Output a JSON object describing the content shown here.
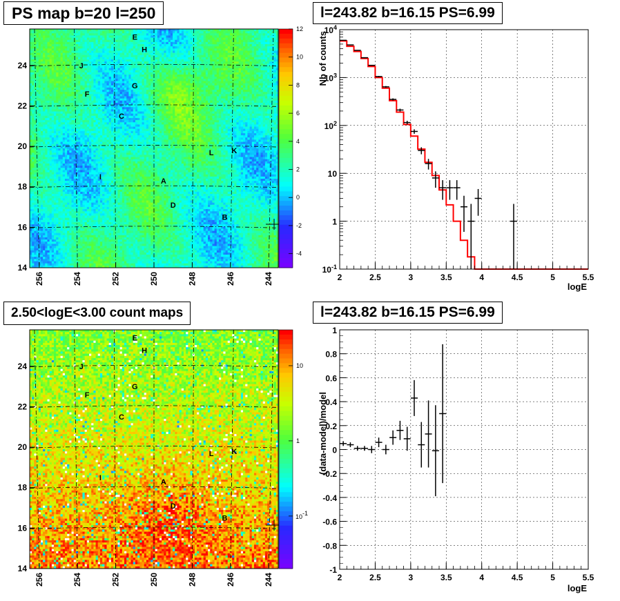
{
  "chart_data": [
    {
      "type": "heatmap",
      "title": "PS map b=20 l=250",
      "x_ticks": [
        "256",
        "254",
        "252",
        "250",
        "248",
        "246",
        "244"
      ],
      "y_ticks": [
        "14",
        "16",
        "18",
        "20",
        "22",
        "24"
      ],
      "xlim": [
        256.5,
        243.5
      ],
      "ylim": [
        14,
        25.8
      ],
      "colorbar_ticks": [
        "12",
        "10",
        "8",
        "6",
        "4",
        "2",
        "0",
        "-2",
        "-4"
      ],
      "colorbar_range": [
        -5,
        12
      ],
      "colorbar_scale": "linear",
      "colors": {
        "low": "#7f00ff",
        "mid": "#00ffff",
        "high": "#ff0000"
      },
      "grid": "dashed lat/lon lines",
      "sources": [
        {
          "label": "E",
          "l": 251.0,
          "b": 25.4
        },
        {
          "label": "H",
          "l": 250.5,
          "b": 24.8
        },
        {
          "label": "J",
          "l": 253.8,
          "b": 24.0
        },
        {
          "label": "G",
          "l": 251.0,
          "b": 23.0
        },
        {
          "label": "F",
          "l": 253.5,
          "b": 22.6
        },
        {
          "label": "C",
          "l": 251.7,
          "b": 21.5
        },
        {
          "label": "L",
          "l": 247.0,
          "b": 19.7
        },
        {
          "label": "K",
          "l": 245.8,
          "b": 19.8
        },
        {
          "label": "I",
          "l": 252.8,
          "b": 18.5
        },
        {
          "label": "A",
          "l": 249.5,
          "b": 18.3
        },
        {
          "label": "D",
          "l": 249.0,
          "b": 17.1
        },
        {
          "label": "B",
          "l": 246.3,
          "b": 16.5
        }
      ]
    },
    {
      "type": "line",
      "title": "l=243.82 b=16.15 PS=6.99",
      "xlabel": "logE",
      "ylabel": "Nb of counts",
      "yscale": "log",
      "xlim": [
        2,
        5.5
      ],
      "ylim": [
        0.1,
        10000
      ],
      "x_ticks": [
        "2",
        "2.5",
        "3",
        "3.5",
        "4",
        "4.5",
        "5",
        "5.5"
      ],
      "y_ticks": [
        "10^-1",
        "1",
        "10",
        "10^2",
        "10^3",
        "10^4"
      ],
      "grid": true,
      "series": [
        {
          "role": "model",
          "color": "#ff0000",
          "bin_edges": [
            2.0,
            2.1,
            2.2,
            2.3,
            2.4,
            2.5,
            2.6,
            2.7,
            2.8,
            2.9,
            3.0,
            3.1,
            3.2,
            3.3,
            3.4,
            3.5,
            3.6,
            3.7,
            3.8,
            3.9,
            4.0,
            5.5
          ],
          "values": [
            5800,
            4500,
            3500,
            2500,
            1700,
            1000,
            600,
            330,
            190,
            105,
            60,
            32,
            17,
            9,
            4.5,
            2.2,
            1.0,
            0.4,
            0.18,
            0.1,
            0.1
          ]
        },
        {
          "role": "data",
          "color": "#000000",
          "x": [
            2.05,
            2.15,
            2.25,
            2.35,
            2.45,
            2.55,
            2.65,
            2.75,
            2.85,
            2.95,
            3.05,
            3.15,
            3.25,
            3.35,
            3.45,
            3.55,
            3.65,
            3.75,
            3.85,
            3.95,
            4.45
          ],
          "y": [
            6000,
            4800,
            3700,
            2600,
            1800,
            1050,
            640,
            350,
            210,
            115,
            75,
            30,
            16,
            8,
            5,
            5,
            5,
            2,
            1,
            3,
            1
          ],
          "y_err_low": [
            80,
            70,
            60,
            50,
            40,
            32,
            25,
            18,
            14,
            10,
            8,
            5,
            4,
            3,
            2.2,
            2.2,
            2.2,
            1.4,
            0.9,
            1.7,
            0.9
          ],
          "y_err_high": [
            80,
            70,
            60,
            50,
            40,
            32,
            25,
            18,
            14,
            10,
            8,
            5,
            4,
            3,
            2.2,
            2.2,
            2.2,
            1.4,
            1.3,
            1.7,
            1.3
          ]
        }
      ]
    },
    {
      "type": "heatmap",
      "title": "2.50<logE<3.00 count maps",
      "x_ticks": [
        "256",
        "254",
        "252",
        "250",
        "248",
        "246",
        "244"
      ],
      "y_ticks": [
        "14",
        "16",
        "18",
        "20",
        "22",
        "24"
      ],
      "xlim": [
        256.5,
        243.5
      ],
      "ylim": [
        14,
        25.8
      ],
      "colorbar_ticks": [
        "10",
        "1",
        "10^-1"
      ],
      "colorbar_range": [
        0.02,
        30
      ],
      "colorbar_scale": "log",
      "grid": "dashed lat/lon lines",
      "sources": [
        {
          "label": "E",
          "l": 251.0,
          "b": 25.4
        },
        {
          "label": "H",
          "l": 250.5,
          "b": 24.8
        },
        {
          "label": "J",
          "l": 253.8,
          "b": 24.0
        },
        {
          "label": "G",
          "l": 251.0,
          "b": 23.0
        },
        {
          "label": "F",
          "l": 253.5,
          "b": 22.6
        },
        {
          "label": "C",
          "l": 251.7,
          "b": 21.5
        },
        {
          "label": "L",
          "l": 247.0,
          "b": 19.7
        },
        {
          "label": "K",
          "l": 245.8,
          "b": 19.8
        },
        {
          "label": "I",
          "l": 252.8,
          "b": 18.5
        },
        {
          "label": "A",
          "l": 249.5,
          "b": 18.3
        },
        {
          "label": "D",
          "l": 249.0,
          "b": 17.1
        },
        {
          "label": "B",
          "l": 246.3,
          "b": 16.5
        }
      ]
    },
    {
      "type": "scatter",
      "title": "l=243.82 b=16.15 PS=6.99",
      "xlabel": "logE",
      "ylabel": "(data-model)/model",
      "xlim": [
        2,
        5.5
      ],
      "ylim": [
        -1,
        1
      ],
      "x_ticks": [
        "2",
        "2.5",
        "3",
        "3.5",
        "4",
        "4.5",
        "5",
        "5.5"
      ],
      "y_ticks": [
        "-1",
        "-0.8",
        "-0.6",
        "-0.4",
        "-0.2",
        "0",
        "0.2",
        "0.4",
        "0.6",
        "0.8",
        "1"
      ],
      "grid": true,
      "series": [
        {
          "color": "#000000",
          "x": [
            2.05,
            2.15,
            2.25,
            2.35,
            2.45,
            2.55,
            2.65,
            2.75,
            2.85,
            2.95,
            3.05,
            3.15,
            3.25,
            3.35,
            3.45
          ],
          "y": [
            0.05,
            0.04,
            0.01,
            0.01,
            0.0,
            0.06,
            0.0,
            0.1,
            0.16,
            0.09,
            0.43,
            0.04,
            0.13,
            -0.01,
            0.3
          ],
          "y_err": [
            0.02,
            0.02,
            0.02,
            0.02,
            0.03,
            0.04,
            0.04,
            0.06,
            0.08,
            0.1,
            0.15,
            0.19,
            0.28,
            0.38,
            0.58
          ]
        }
      ]
    }
  ]
}
